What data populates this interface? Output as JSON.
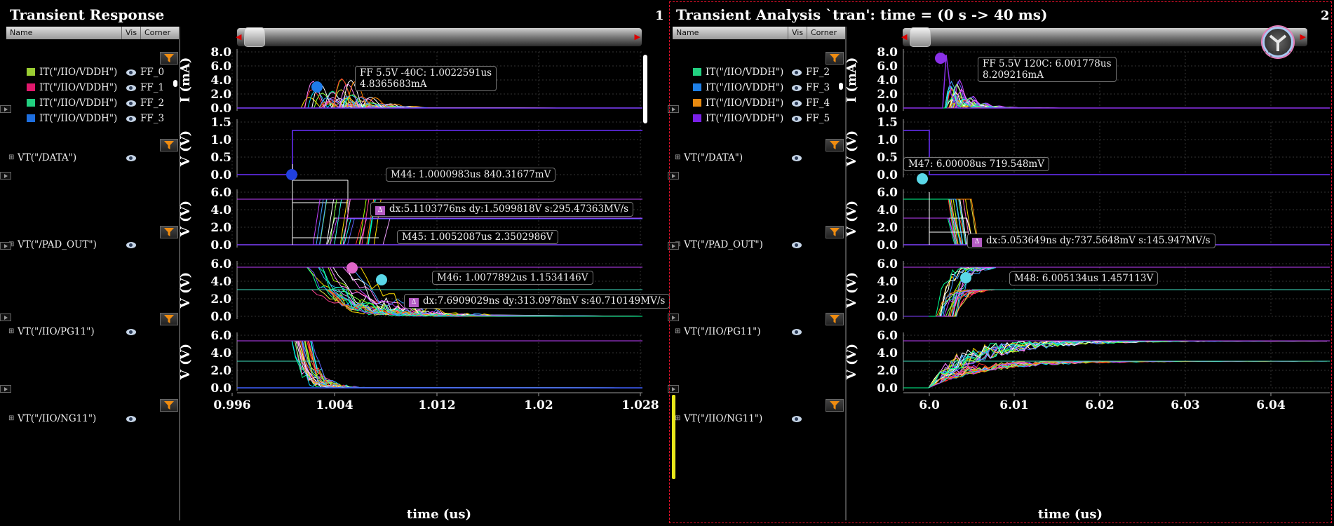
{
  "windows": [
    {
      "title": "Transient Response",
      "number": "1",
      "headers": [
        "Name",
        "Vis",
        "Corner"
      ],
      "current_signals": [
        {
          "name": "IT(\"/IIO/VDDH\")",
          "corner": "FF_0",
          "color": "#9acd32"
        },
        {
          "name": "IT(\"/IIO/VDDH\")",
          "corner": "FF_1",
          "color": "#e0186c"
        },
        {
          "name": "IT(\"/IIO/VDDH\")",
          "corner": "FF_2",
          "color": "#22d080"
        },
        {
          "name": "IT(\"/IIO/VDDH\")",
          "corner": "FF_3",
          "color": "#1e6fe0"
        }
      ],
      "voltage_signals": [
        "VT(\"/DATA\")",
        "VT(\"/PAD_OUT\")",
        "VT(\"/IIO/PG11\")",
        "VT(\"/IIO/NG11\")"
      ],
      "y_label_current": "I (mA)",
      "y_label_voltage": "V (V)",
      "x_label": "time (us)",
      "x_ticks": [
        "0.996",
        "1.004",
        "1.012",
        "1.02",
        "1.028"
      ],
      "annotations": {
        "peak": "FF 5.5V -40C: 1.0022591us\n4.8365683mA",
        "m44": "M44: 1.0000983us 840.31677mV",
        "delta1": "dx:5.1103776ns dy:1.5099818V s:295.47363MV/s",
        "m45": "M45: 1.0052087us 2.3502986V",
        "m46": "M46: 1.0077892us 1.1534146V",
        "delta2": "dx:7.6909029ns dy:313.0978mV s:40.710149MV/s"
      }
    },
    {
      "title": "Transient Analysis `tran': time = (0 s -> 40 ms)",
      "number": "2",
      "headers": [
        "Name",
        "Vis",
        "Corner"
      ],
      "current_signals": [
        {
          "name": "IT(\"/IIO/VDDH\")",
          "corner": "FF_2",
          "color": "#22d080"
        },
        {
          "name": "IT(\"/IIO/VDDH\")",
          "corner": "FF_3",
          "color": "#1e80e8"
        },
        {
          "name": "IT(\"/IIO/VDDH\")",
          "corner": "FF_4",
          "color": "#e88a10"
        },
        {
          "name": "IT(\"/IIO/VDDH\")",
          "corner": "FF_5",
          "color": "#7a20e8"
        }
      ],
      "voltage_signals": [
        "VT(\"/DATA\")",
        "VT(\"/PAD_OUT\")",
        "VT(\"/IIO/PG11\")",
        "VT(\"/IIO/NG11\")"
      ],
      "y_label_current": "I (mA)",
      "y_label_voltage": "V (V)",
      "x_label": "time (us)",
      "x_ticks": [
        "6.0",
        "6.01",
        "6.02",
        "6.03",
        "6.04"
      ],
      "annotations": {
        "peak": "FF 5.5V 120C: 6.001778us\n8.209216mA",
        "m47": "M47: 6.00008us 719.548mV",
        "delta1": "dx:5.053649ns dy:737.5648mV s:145.947MV/s",
        "m48": "M48: 6.005134us 1.457113V"
      }
    }
  ],
  "y_ticks": {
    "current": [
      "8.0",
      "6.0",
      "4.0",
      "2.0",
      "0.0"
    ],
    "data": [
      "1.5",
      "1.0",
      "0.5",
      "0.0"
    ],
    "volt6": [
      "6.0",
      "4.0",
      "2.0",
      "0.0"
    ]
  },
  "icons": [
    "filter-icon",
    "eye-icon",
    "expand-plus-icon",
    "play-icon",
    "scroll-thumb",
    "app-logo-icon"
  ]
}
